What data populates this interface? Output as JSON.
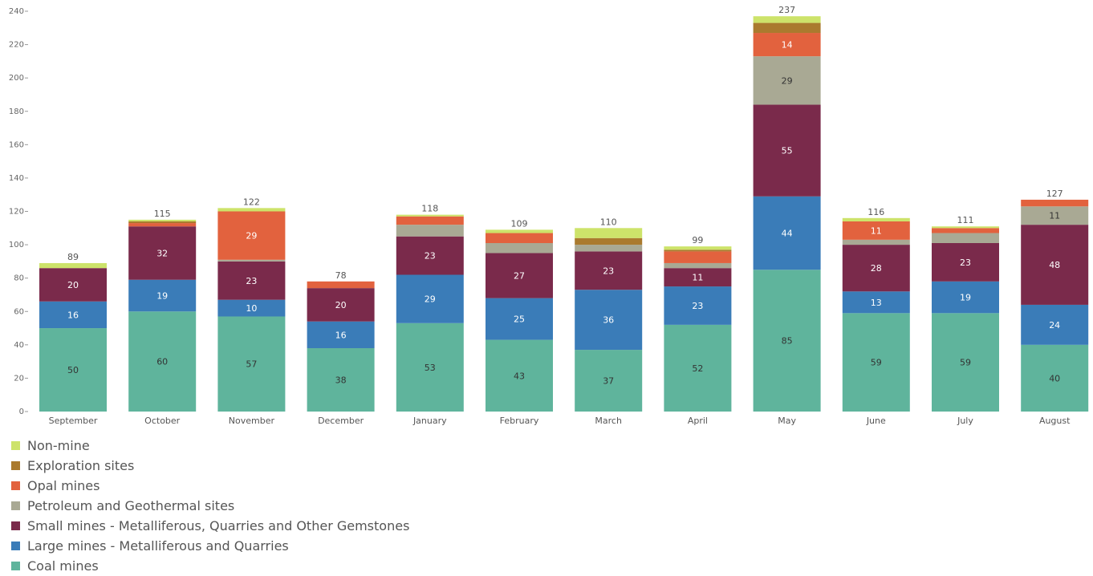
{
  "chart_data": {
    "type": "bar",
    "stacked": true,
    "categories": [
      "September",
      "October",
      "November",
      "December",
      "January",
      "February",
      "March",
      "April",
      "May",
      "June",
      "July",
      "August"
    ],
    "ylim": [
      0,
      240
    ],
    "yticks": [
      0,
      20,
      40,
      60,
      80,
      100,
      120,
      140,
      160,
      180,
      200,
      220,
      240
    ],
    "totals": [
      89,
      115,
      122,
      78,
      118,
      109,
      110,
      99,
      237,
      116,
      111,
      127
    ],
    "legend_position": "bottom-left",
    "series": [
      {
        "name": "Coal mines",
        "color": "#5fb49c",
        "label_color": "#333333",
        "values": [
          50,
          60,
          57,
          38,
          53,
          43,
          37,
          52,
          85,
          59,
          59,
          40
        ],
        "labels": [
          "50",
          "60",
          "57",
          "38",
          "53",
          "43",
          "37",
          "52",
          "85",
          "59",
          "59",
          "40"
        ]
      },
      {
        "name": "Large mines - Metalliferous and Quarries",
        "color": "#3a7cb8",
        "label_color": "#ffffff",
        "values": [
          16,
          19,
          10,
          16,
          29,
          25,
          36,
          23,
          44,
          13,
          19,
          24
        ],
        "labels": [
          "16",
          "19",
          "10",
          "16",
          "29",
          "25",
          "36",
          "23",
          "44",
          "13",
          "19",
          "24"
        ]
      },
      {
        "name": "Small mines - Metalliferous, Quarries and Other Gemstones",
        "color": "#7a2a4b",
        "label_color": "#ffffff",
        "values": [
          20,
          32,
          23,
          20,
          23,
          27,
          23,
          11,
          55,
          28,
          23,
          48
        ],
        "labels": [
          "20",
          "32",
          "23",
          "20",
          "23",
          "27",
          "23",
          "11",
          "55",
          "28",
          "23",
          "48"
        ]
      },
      {
        "name": "Petroleum and Geothermal sites",
        "color": "#a9a994",
        "label_color": "#333333",
        "values": [
          0,
          0,
          1,
          0,
          7,
          6,
          4,
          3,
          29,
          3,
          6,
          11
        ],
        "labels": [
          "",
          "",
          "",
          "",
          "",
          "",
          "",
          "",
          "29",
          "",
          "",
          "11"
        ]
      },
      {
        "name": "Opal mines",
        "color": "#e2623e",
        "label_color": "#ffffff",
        "values": [
          0,
          2,
          29,
          4,
          5,
          6,
          0,
          7,
          14,
          11,
          3,
          4
        ],
        "labels": [
          "",
          "",
          "29",
          "",
          "",
          "",
          "",
          "",
          "14",
          "11",
          "",
          ""
        ]
      },
      {
        "name": "Exploration sites",
        "color": "#aa7a2e",
        "label_color": "#ffffff",
        "values": [
          0,
          1,
          0,
          0,
          0,
          0,
          4,
          1,
          6,
          0,
          0,
          0
        ],
        "labels": [
          "",
          "",
          "",
          "",
          "",
          "",
          "",
          "",
          "",
          "",
          "",
          ""
        ]
      },
      {
        "name": "Non-mine",
        "color": "#cde36a",
        "label_color": "#333333",
        "values": [
          3,
          1,
          2,
          0,
          1,
          2,
          6,
          2,
          4,
          2,
          1,
          0
        ],
        "labels": [
          "",
          "",
          "",
          "",
          "",
          "",
          "",
          "",
          "",
          "",
          "",
          ""
        ]
      }
    ]
  }
}
